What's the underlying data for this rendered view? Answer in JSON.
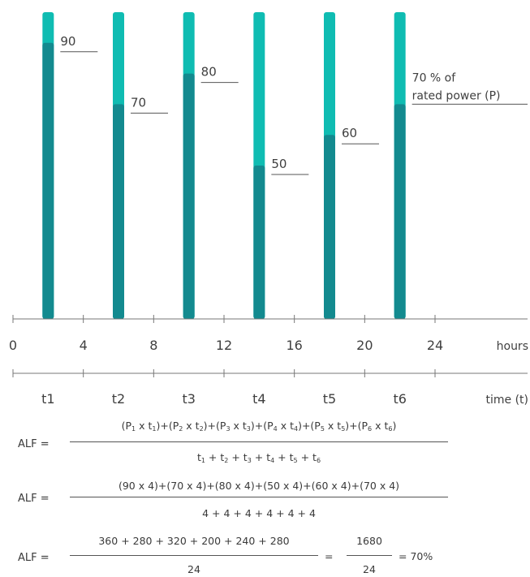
{
  "chart_data": {
    "type": "bar",
    "x_ticks": [
      "0",
      "4",
      "8",
      "12",
      "16",
      "20",
      "24"
    ],
    "x_unit": "hours",
    "x_range": [
      0,
      24
    ],
    "bar_centers_hours": [
      2,
      6,
      10,
      14,
      18,
      22
    ],
    "periods": [
      "t1",
      "t2",
      "t3",
      "t4",
      "t5",
      "t6"
    ],
    "period_unit": "time (t)",
    "values": [
      90,
      70,
      80,
      50,
      60,
      70
    ],
    "value_labels": [
      "90",
      "70",
      "80",
      "50",
      "60",
      "70 % of rated power (P)"
    ],
    "last_label_lines": [
      "70 % of",
      "rated power (P)"
    ],
    "rated": 100,
    "colors": {
      "load": "#138a8f",
      "rated_remainder": "#0fbcb2"
    }
  },
  "formula": {
    "alf_label": "ALF =",
    "row1": {
      "numerator": [
        {
          "P": "1",
          "t": "1"
        },
        {
          "P": "2",
          "t": "2"
        },
        {
          "P": "3",
          "t": "3"
        },
        {
          "P": "4",
          "t": "4"
        },
        {
          "P": "5",
          "t": "5"
        },
        {
          "P": "6",
          "t": "6"
        }
      ],
      "denominator_subs": [
        "1",
        "2",
        "3",
        "4",
        "5",
        "6"
      ]
    },
    "row2": {
      "numerator": "(90 x 4)+(70 x 4)+(80 x 4)+(50 x 4)+(60 x 4)+(70 x 4)",
      "denominator": "4 + 4 + 4 + 4 + 4 + 4"
    },
    "row3": {
      "numerator": "360 + 280 + 320 + 200 + 240 + 280",
      "denominator": "24",
      "equals": "=",
      "numerator2": "1680",
      "denominator2": "24",
      "result": "= 70%"
    }
  }
}
